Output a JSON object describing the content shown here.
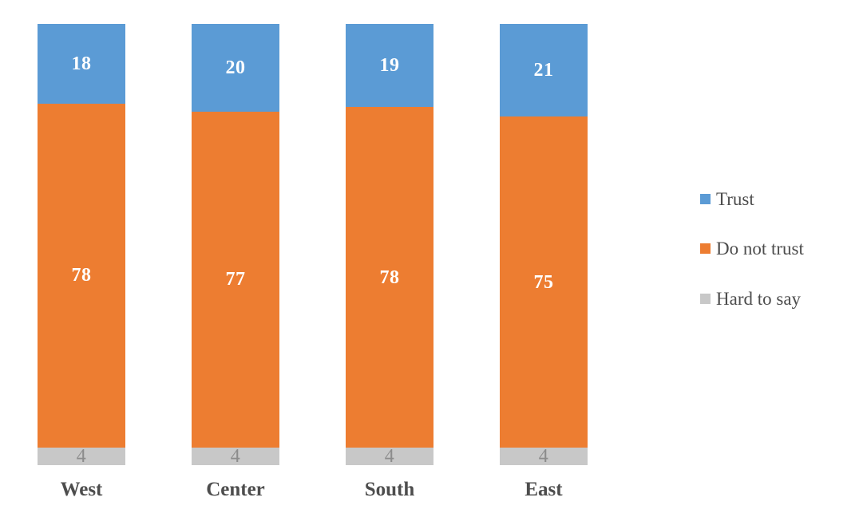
{
  "chart_data": {
    "type": "bar",
    "subtype": "stacked-column",
    "title": "",
    "xlabel": "",
    "ylabel": "",
    "grid": false,
    "legend_position": "right",
    "categories": [
      "West",
      "Center",
      "South",
      "East"
    ],
    "series": [
      {
        "name": "Trust",
        "color": "#5B9BD5",
        "values": [
          18,
          20,
          19,
          21
        ],
        "label_color": "#FFFFFF"
      },
      {
        "name": "Do not trust",
        "color": "#ED7D31",
        "values": [
          78,
          77,
          78,
          75
        ],
        "label_color": "#FFFFFF"
      },
      {
        "name": "Hard to say",
        "color": "#C8C8C8",
        "values": [
          4,
          4,
          4,
          4
        ],
        "label_color": "#8C8C8C"
      }
    ]
  },
  "colors": {
    "background": "#FFFFFF",
    "category_label": "#4D4D4D",
    "legend_label": "#4D4D4D"
  }
}
